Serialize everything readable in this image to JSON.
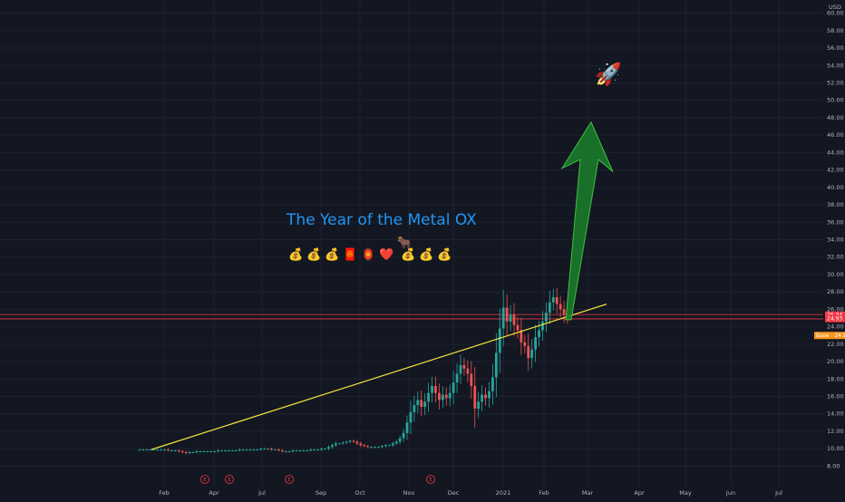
{
  "chart_data": {
    "type": "candlestick",
    "currency": "USD",
    "y_ticks": [
      "8.00",
      "10.00",
      "12.00",
      "14.00",
      "16.00",
      "18.00",
      "20.00",
      "22.00",
      "24.00",
      "26.00",
      "28.00",
      "30.00",
      "32.00",
      "34.00",
      "36.00",
      "38.00",
      "40.00",
      "42.00",
      "44.00",
      "46.00",
      "48.00",
      "50.00",
      "52.00",
      "54.00",
      "56.00",
      "58.00",
      "60.00"
    ],
    "ylim": [
      7.0,
      61.0
    ],
    "x_ticks": [
      "Feb",
      "Apr",
      "Jul",
      "Sep",
      "Oct",
      "Nov",
      "Dec",
      "2021",
      "Feb",
      "Mar",
      "Apr",
      "May",
      "Jun",
      "Jul"
    ],
    "grid": true,
    "title": "The Year of the Metal OX",
    "emoji_line": [
      "💰",
      "💰",
      "💰",
      "🧧",
      "🏮",
      "❤️",
      "🐂",
      "💰",
      "💰",
      "💰"
    ],
    "rocket": "🚀",
    "earnings_markers": [
      "E",
      "E",
      "E",
      "E"
    ],
    "price_labels": [
      {
        "text": "25.34",
        "value": 25.34,
        "color": "#f23645"
      },
      {
        "text": "24.93",
        "value": 24.93,
        "color": "#f23645"
      },
      {
        "text": "Base · 24.96",
        "value": 23.0,
        "color": "#f7931a"
      }
    ],
    "horizontal_lines": [
      {
        "value": 25.4,
        "color": "#f23645"
      },
      {
        "value": 24.9,
        "color": "#f23645"
      }
    ],
    "trendline": {
      "from": 9.9,
      "to": 26.6,
      "color": "#f5e23d"
    },
    "arrow_target": 47.5,
    "colors": {
      "up": "#26a69a",
      "down": "#ef5350",
      "arrow": "#1b7a2a",
      "grid": "#1e222d"
    },
    "price_series": [
      9.9,
      9.9,
      9.9,
      9.9,
      9.9,
      9.9,
      9.9,
      9.9,
      9.8,
      9.8,
      9.8,
      9.7,
      9.6,
      9.5,
      9.6,
      9.6,
      9.7,
      9.7,
      9.7,
      9.7,
      9.7,
      9.7,
      9.8,
      9.8,
      9.8,
      9.8,
      9.8,
      9.8,
      9.9,
      9.9,
      9.9,
      9.9,
      9.9,
      9.9,
      10.0,
      10.0,
      10.0,
      9.9,
      9.9,
      9.8,
      9.7,
      9.7,
      9.7,
      9.8,
      9.8,
      9.8,
      9.8,
      9.8,
      9.9,
      9.9,
      9.9,
      10.0,
      10.0,
      10.2,
      10.4,
      10.6,
      10.6,
      10.7,
      10.8,
      10.9,
      10.8,
      10.6,
      10.4,
      10.3,
      10.2,
      10.2,
      10.2,
      10.2,
      10.3,
      10.4,
      10.4,
      10.6,
      10.8,
      11.2,
      11.8,
      13.0,
      14.2,
      15.0,
      15.6,
      14.8,
      15.4,
      16.4,
      17.2,
      16.4,
      15.6,
      16.2,
      15.8,
      16.4,
      17.6,
      18.6,
      19.6,
      19.2,
      18.6,
      17.2,
      14.6,
      15.4,
      16.2,
      15.8,
      16.6,
      18.2,
      21.0,
      23.8,
      26.2,
      24.6,
      25.4,
      24.2,
      23.6,
      22.2,
      21.8,
      20.4,
      21.4,
      22.8,
      23.6,
      24.6,
      25.6,
      26.8,
      27.4,
      26.6,
      26.0,
      25.4,
      25.1
    ]
  }
}
